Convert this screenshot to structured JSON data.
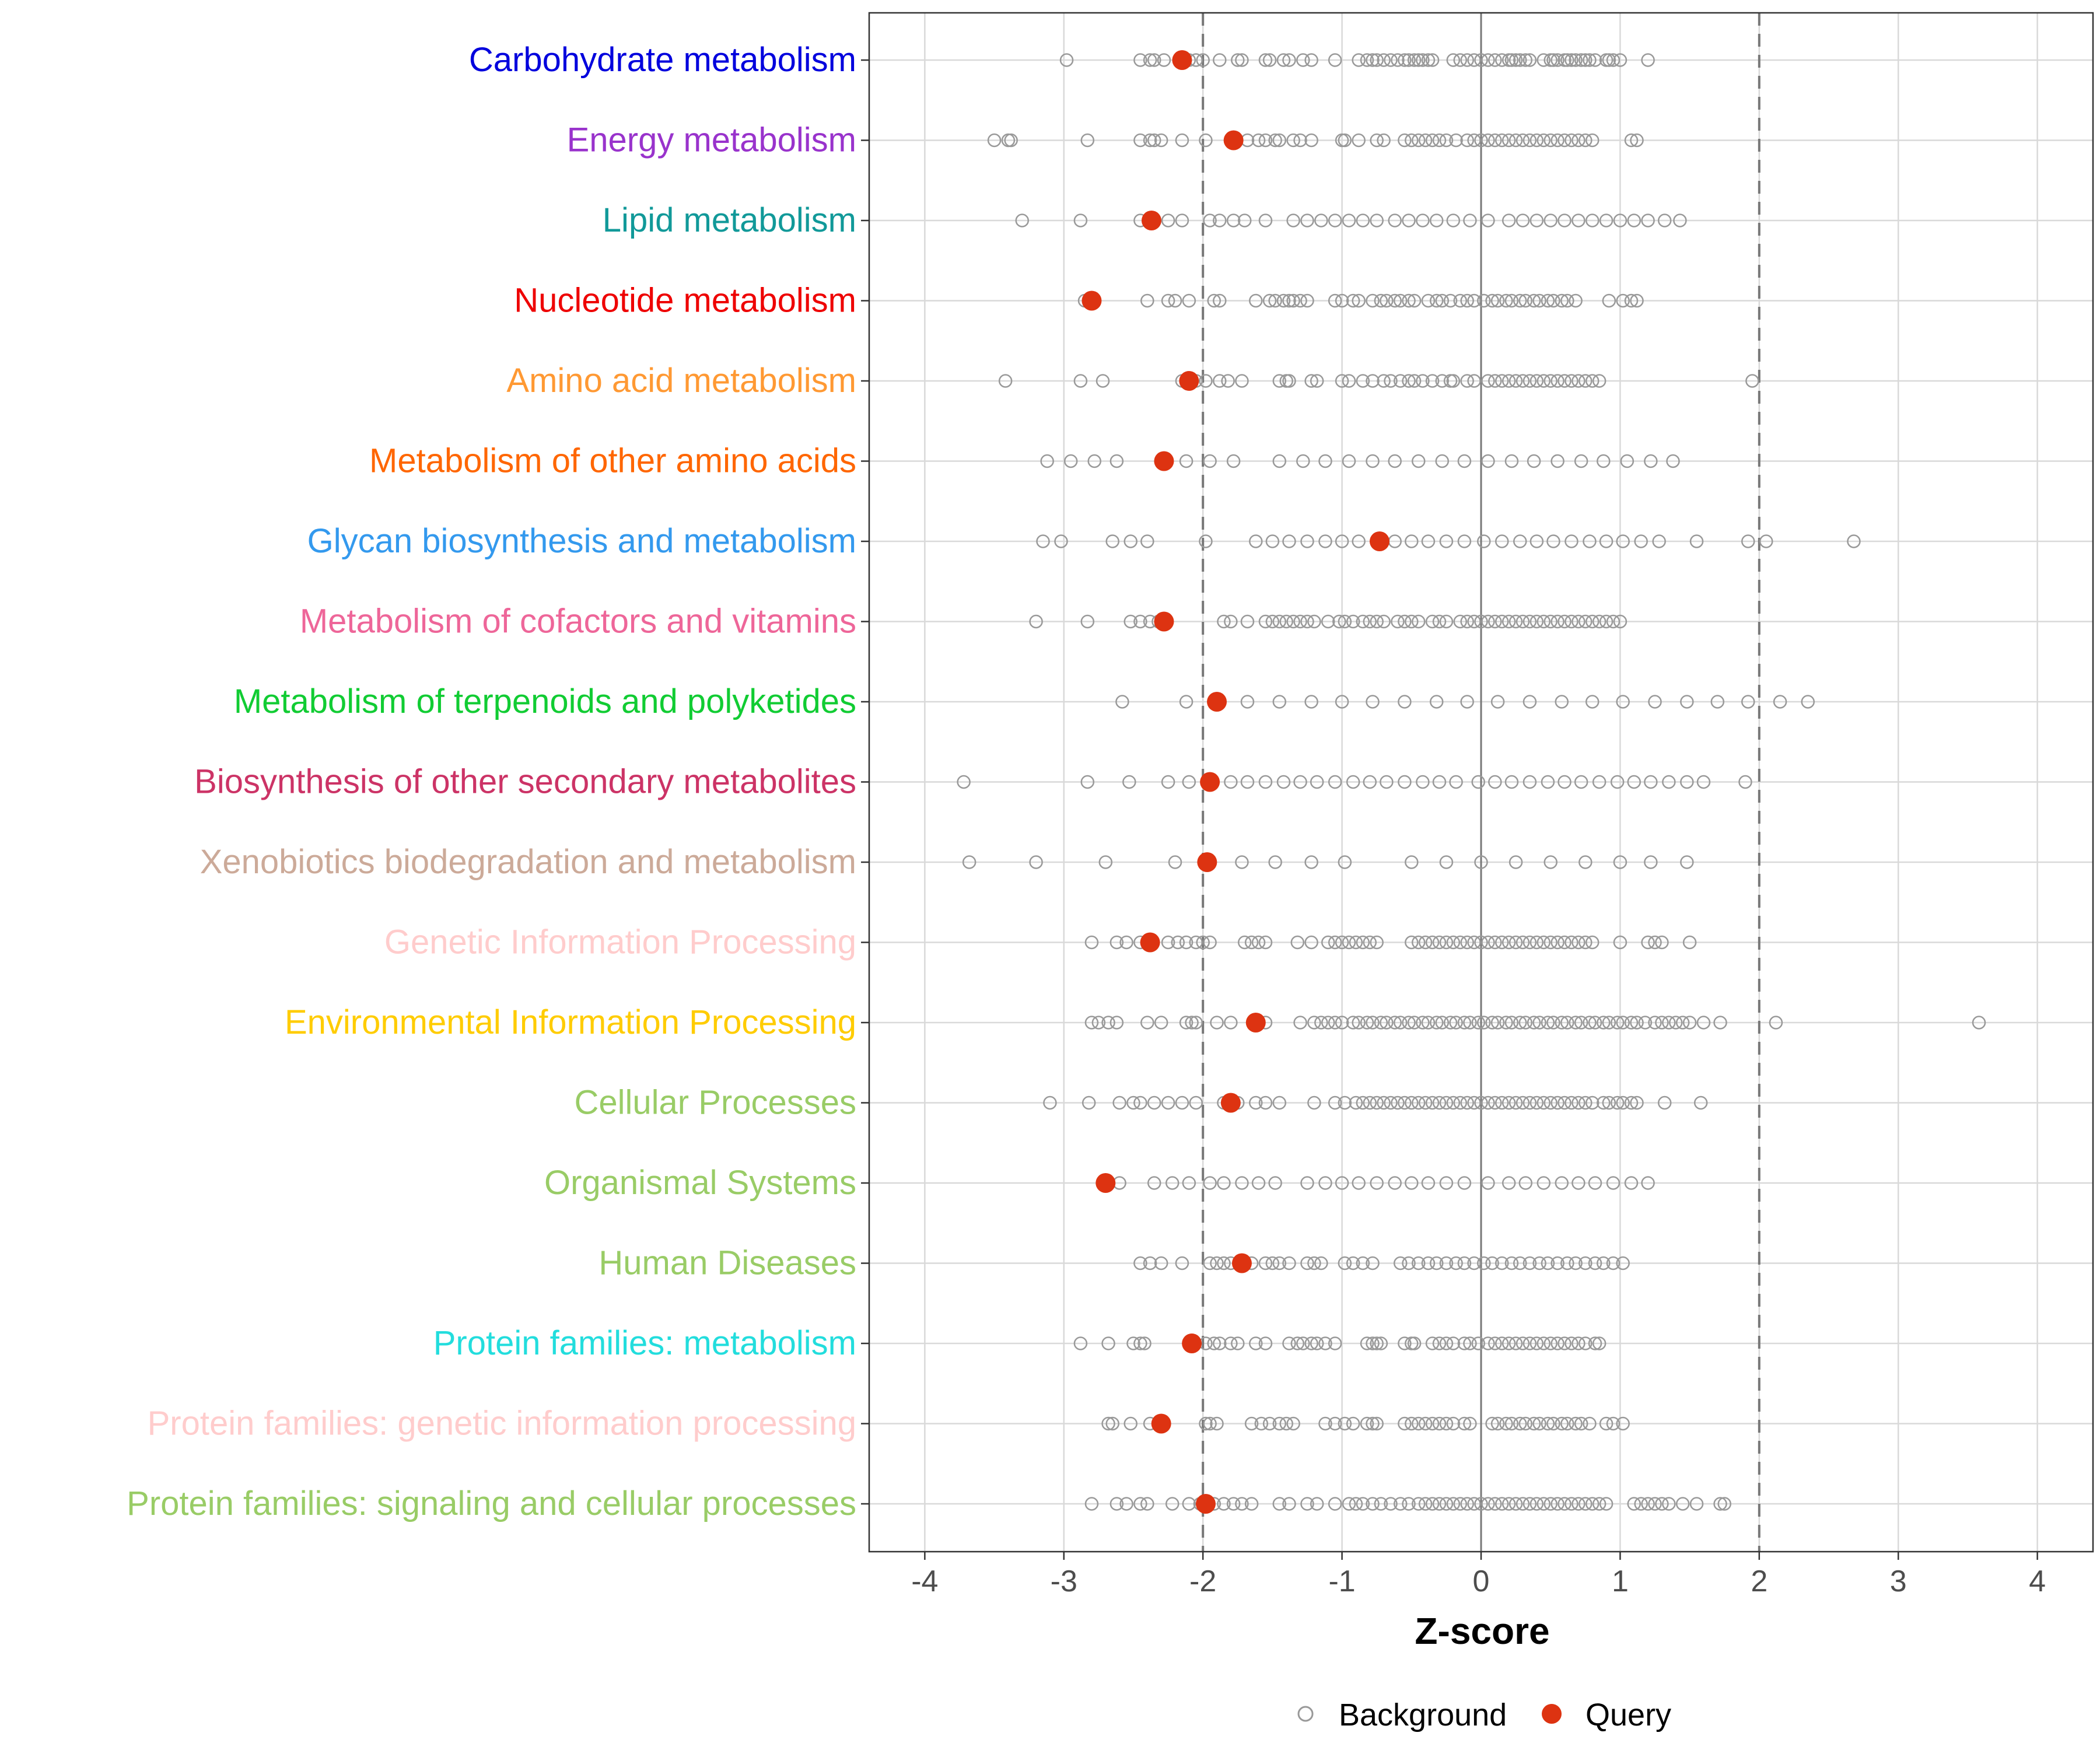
{
  "chart_data": {
    "type": "scatter",
    "title": "",
    "xlabel": "Z-score",
    "ylabel": "",
    "xlim": [
      -4.4,
      4.4
    ],
    "xticks": [
      "-4",
      "-3",
      "-2",
      "-1",
      "0",
      "1",
      "2",
      "3",
      "4"
    ],
    "xtick_values": [
      -4,
      -3,
      -2,
      -1,
      0,
      1,
      2,
      3,
      4
    ],
    "threshold_lines": [
      -2,
      2
    ],
    "zero_line": 0,
    "grid": true,
    "legend": {
      "position": "bottom",
      "entries": [
        {
          "name": "Background",
          "color": "#999999",
          "marker": "open-circle"
        },
        {
          "name": "Query",
          "color": "#dd3311",
          "marker": "filled-circle"
        }
      ]
    },
    "categories": [
      {
        "name": "Carbohydrate metabolism",
        "color": "#0000dd",
        "query": -2.15,
        "background": [
          -2.98,
          -2.45,
          -2.38,
          -2.35,
          -2.28,
          -2.1,
          -2.05,
          -2.0,
          -1.88,
          -1.75,
          -1.72,
          -1.55,
          -1.52,
          -1.42,
          -1.38,
          -1.28,
          -1.22,
          -1.05,
          -0.88,
          -0.82,
          -0.78,
          -0.75,
          -0.7,
          -0.65,
          -0.6,
          -0.55,
          -0.52,
          -0.48,
          -0.45,
          -0.42,
          -0.38,
          -0.35,
          -0.2,
          -0.15,
          -0.1,
          -0.05,
          0.0,
          0.05,
          0.1,
          0.15,
          0.2,
          0.22,
          0.25,
          0.28,
          0.32,
          0.35,
          0.45,
          0.5,
          0.52,
          0.55,
          0.6,
          0.62,
          0.65,
          0.68,
          0.72,
          0.75,
          0.78,
          0.82,
          0.9,
          0.92,
          0.95,
          1.0,
          1.2
        ]
      },
      {
        "name": "Energy metabolism",
        "color": "#9933cc",
        "query": -1.78,
        "background": [
          -3.5,
          -3.4,
          -3.38,
          -2.83,
          -2.45,
          -2.38,
          -2.35,
          -2.3,
          -2.15,
          -1.98,
          -1.68,
          -1.6,
          -1.55,
          -1.48,
          -1.45,
          -1.35,
          -1.3,
          -1.22,
          -1.0,
          -0.98,
          -0.88,
          -0.75,
          -0.7,
          -0.55,
          -0.5,
          -0.45,
          -0.4,
          -0.35,
          -0.3,
          -0.25,
          -0.18,
          -0.1,
          -0.05,
          0.0,
          0.05,
          0.1,
          0.15,
          0.2,
          0.25,
          0.3,
          0.35,
          0.4,
          0.45,
          0.5,
          0.55,
          0.6,
          0.65,
          0.7,
          0.75,
          0.8,
          1.08,
          1.12
        ]
      },
      {
        "name": "Lipid metabolism",
        "color": "#119999",
        "query": -2.37,
        "background": [
          -3.3,
          -2.88,
          -2.45,
          -2.25,
          -2.15,
          -1.95,
          -1.88,
          -1.78,
          -1.7,
          -1.55,
          -1.35,
          -1.25,
          -1.15,
          -1.05,
          -0.95,
          -0.85,
          -0.75,
          -0.62,
          -0.52,
          -0.42,
          -0.32,
          -0.2,
          -0.08,
          0.05,
          0.2,
          0.3,
          0.4,
          0.5,
          0.6,
          0.7,
          0.8,
          0.9,
          1.0,
          1.1,
          1.2,
          1.32,
          1.43
        ]
      },
      {
        "name": "Nucleotide metabolism",
        "color": "#ee0000",
        "query": -2.8,
        "background": [
          -2.85,
          -2.4,
          -2.25,
          -2.2,
          -2.1,
          -1.92,
          -1.88,
          -1.62,
          -1.52,
          -1.48,
          -1.42,
          -1.38,
          -1.35,
          -1.3,
          -1.25,
          -1.05,
          -1.0,
          -0.92,
          -0.88,
          -0.78,
          -0.72,
          -0.68,
          -0.62,
          -0.58,
          -0.52,
          -0.48,
          -0.38,
          -0.32,
          -0.28,
          -0.22,
          -0.15,
          -0.1,
          -0.05,
          0.02,
          0.08,
          0.12,
          0.18,
          0.22,
          0.28,
          0.32,
          0.38,
          0.42,
          0.48,
          0.52,
          0.58,
          0.62,
          0.68,
          0.92,
          1.02,
          1.08,
          1.12
        ]
      },
      {
        "name": "Amino acid metabolism",
        "color": "#ff9933",
        "query": -2.1,
        "background": [
          -3.42,
          -2.88,
          -2.72,
          -2.15,
          -2.05,
          -1.98,
          -1.88,
          -1.82,
          -1.72,
          -1.45,
          -1.4,
          -1.38,
          -1.22,
          -1.18,
          -1.0,
          -0.95,
          -0.85,
          -0.78,
          -0.7,
          -0.65,
          -0.58,
          -0.52,
          -0.48,
          -0.42,
          -0.35,
          -0.28,
          -0.22,
          -0.2,
          -0.1,
          -0.05,
          0.05,
          0.1,
          0.15,
          0.2,
          0.25,
          0.3,
          0.35,
          0.4,
          0.45,
          0.5,
          0.55,
          0.6,
          0.65,
          0.7,
          0.75,
          0.8,
          0.85,
          1.95
        ]
      },
      {
        "name": "Metabolism of other amino acids",
        "color": "#ff6600",
        "query": -2.28,
        "background": [
          -3.12,
          -2.95,
          -2.78,
          -2.62,
          -2.12,
          -1.95,
          -1.78,
          -1.45,
          -1.28,
          -1.12,
          -0.95,
          -0.78,
          -0.62,
          -0.45,
          -0.28,
          -0.12,
          0.05,
          0.22,
          0.38,
          0.55,
          0.72,
          0.88,
          1.05,
          1.22,
          1.38
        ]
      },
      {
        "name": "Glycan biosynthesis and metabolism",
        "color": "#3399ee",
        "query": -0.73,
        "background": [
          -3.15,
          -3.02,
          -2.65,
          -2.52,
          -2.4,
          -1.98,
          -1.62,
          -1.5,
          -1.38,
          -1.25,
          -1.12,
          -1.0,
          -0.88,
          -0.62,
          -0.5,
          -0.38,
          -0.25,
          -0.12,
          0.02,
          0.15,
          0.28,
          0.4,
          0.52,
          0.65,
          0.78,
          0.9,
          1.02,
          1.15,
          1.28,
          1.55,
          1.92,
          2.05,
          2.68
        ]
      },
      {
        "name": "Metabolism of cofactors and vitamins",
        "color": "#ee6699",
        "query": -2.28,
        "background": [
          -3.2,
          -2.83,
          -2.52,
          -2.45,
          -2.38,
          -2.32,
          -1.85,
          -1.8,
          -1.68,
          -1.55,
          -1.5,
          -1.45,
          -1.4,
          -1.35,
          -1.3,
          -1.25,
          -1.2,
          -1.1,
          -1.02,
          -0.98,
          -0.92,
          -0.85,
          -0.8,
          -0.75,
          -0.7,
          -0.6,
          -0.55,
          -0.5,
          -0.45,
          -0.35,
          -0.3,
          -0.25,
          -0.15,
          -0.1,
          -0.05,
          0.0,
          0.05,
          0.1,
          0.15,
          0.2,
          0.25,
          0.3,
          0.35,
          0.4,
          0.45,
          0.5,
          0.55,
          0.6,
          0.65,
          0.7,
          0.75,
          0.8,
          0.85,
          0.9,
          0.95,
          1.0
        ]
      },
      {
        "name": "Metabolism of terpenoids and polyketides",
        "color": "#11cc33",
        "query": -1.9,
        "background": [
          -2.58,
          -2.12,
          -1.68,
          -1.45,
          -1.22,
          -1.0,
          -0.78,
          -0.55,
          -0.32,
          -0.1,
          0.12,
          0.35,
          0.58,
          0.8,
          1.02,
          1.25,
          1.48,
          1.7,
          1.92,
          2.15,
          2.35
        ]
      },
      {
        "name": "Biosynthesis of other secondary metabolites",
        "color": "#cc3366",
        "query": -1.95,
        "background": [
          -3.72,
          -2.83,
          -2.53,
          -2.25,
          -2.1,
          -1.8,
          -1.68,
          -1.55,
          -1.42,
          -1.3,
          -1.18,
          -1.05,
          -0.92,
          -0.8,
          -0.68,
          -0.55,
          -0.42,
          -0.3,
          -0.18,
          -0.02,
          0.1,
          0.22,
          0.35,
          0.48,
          0.6,
          0.72,
          0.85,
          0.98,
          1.1,
          1.22,
          1.35,
          1.48,
          1.6,
          1.9
        ]
      },
      {
        "name": "Xenobiotics biodegradation and metabolism",
        "color": "#ccaa99",
        "query": -1.97,
        "background": [
          -3.68,
          -3.2,
          -2.7,
          -2.2,
          -1.72,
          -1.48,
          -1.22,
          -0.98,
          -0.5,
          -0.25,
          0.0,
          0.25,
          0.5,
          0.75,
          1.0,
          1.22,
          1.48
        ]
      },
      {
        "name": "Genetic Information Processing",
        "color": "#ffcccc",
        "query": -2.38,
        "background": [
          -2.8,
          -2.62,
          -2.55,
          -2.45,
          -2.25,
          -2.18,
          -2.12,
          -2.05,
          -2.0,
          -1.95,
          -1.7,
          -1.65,
          -1.6,
          -1.55,
          -1.32,
          -1.22,
          -1.1,
          -1.05,
          -1.0,
          -0.95,
          -0.9,
          -0.85,
          -0.8,
          -0.75,
          -0.5,
          -0.45,
          -0.4,
          -0.35,
          -0.3,
          -0.25,
          -0.2,
          -0.15,
          -0.1,
          -0.05,
          0.0,
          0.05,
          0.1,
          0.15,
          0.2,
          0.25,
          0.3,
          0.35,
          0.4,
          0.45,
          0.5,
          0.55,
          0.6,
          0.65,
          0.7,
          0.75,
          0.8,
          1.0,
          1.2,
          1.25,
          1.3,
          1.5
        ]
      },
      {
        "name": "Environmental Information Processing",
        "color": "#ffcc00",
        "query": -1.62,
        "background": [
          -2.8,
          -2.75,
          -2.68,
          -2.62,
          -2.4,
          -2.3,
          -2.12,
          -2.08,
          -2.05,
          -1.9,
          -1.8,
          -1.55,
          -1.3,
          -1.2,
          -1.15,
          -1.1,
          -1.05,
          -1.0,
          -0.92,
          -0.88,
          -0.82,
          -0.78,
          -0.72,
          -0.68,
          -0.62,
          -0.58,
          -0.52,
          -0.48,
          -0.42,
          -0.38,
          -0.32,
          -0.28,
          -0.22,
          -0.18,
          -0.12,
          -0.08,
          -0.02,
          0.02,
          0.08,
          0.12,
          0.18,
          0.22,
          0.28,
          0.32,
          0.38,
          0.42,
          0.48,
          0.52,
          0.58,
          0.62,
          0.68,
          0.72,
          0.78,
          0.82,
          0.88,
          0.92,
          0.98,
          1.02,
          1.08,
          1.12,
          1.18,
          1.25,
          1.3,
          1.35,
          1.4,
          1.45,
          1.5,
          1.6,
          1.72,
          2.12,
          3.58
        ]
      },
      {
        "name": "Cellular Processes",
        "color": "#99cc66",
        "query": -1.8,
        "background": [
          -3.1,
          -2.82,
          -2.6,
          -2.5,
          -2.45,
          -2.35,
          -2.25,
          -2.15,
          -2.05,
          -1.85,
          -1.75,
          -1.62,
          -1.55,
          -1.45,
          -1.2,
          -1.05,
          -0.98,
          -0.9,
          -0.85,
          -0.8,
          -0.75,
          -0.7,
          -0.65,
          -0.6,
          -0.55,
          -0.5,
          -0.45,
          -0.4,
          -0.35,
          -0.3,
          -0.25,
          -0.2,
          -0.15,
          -0.1,
          -0.05,
          0.0,
          0.05,
          0.1,
          0.15,
          0.2,
          0.25,
          0.3,
          0.35,
          0.4,
          0.45,
          0.5,
          0.55,
          0.6,
          0.65,
          0.7,
          0.75,
          0.8,
          0.88,
          0.92,
          0.98,
          1.02,
          1.08,
          1.12,
          1.32,
          1.58
        ]
      },
      {
        "name": "Organismal Systems",
        "color": "#99cc66",
        "query": -2.7,
        "background": [
          -2.6,
          -2.35,
          -2.22,
          -2.1,
          -1.95,
          -1.85,
          -1.72,
          -1.6,
          -1.48,
          -1.25,
          -1.12,
          -1.0,
          -0.88,
          -0.75,
          -0.62,
          -0.5,
          -0.38,
          -0.25,
          -0.12,
          0.05,
          0.2,
          0.32,
          0.45,
          0.58,
          0.7,
          0.82,
          0.95,
          1.08,
          1.2
        ]
      },
      {
        "name": "Human Diseases",
        "color": "#99cc66",
        "query": -1.72,
        "background": [
          -2.45,
          -2.38,
          -2.3,
          -2.15,
          -1.95,
          -1.9,
          -1.85,
          -1.8,
          -1.65,
          -1.55,
          -1.5,
          -1.45,
          -1.38,
          -1.25,
          -1.2,
          -1.15,
          -0.98,
          -0.92,
          -0.85,
          -0.78,
          -0.58,
          -0.52,
          -0.45,
          -0.38,
          -0.32,
          -0.25,
          -0.18,
          -0.12,
          -0.05,
          0.02,
          0.08,
          0.15,
          0.22,
          0.28,
          0.35,
          0.42,
          0.48,
          0.55,
          0.62,
          0.68,
          0.75,
          0.82,
          0.88,
          0.95,
          1.02
        ]
      },
      {
        "name": "Protein families: metabolism",
        "color": "#22dddd",
        "query": -2.08,
        "background": [
          -2.88,
          -2.68,
          -2.5,
          -2.45,
          -2.42,
          -1.98,
          -1.92,
          -1.88,
          -1.8,
          -1.75,
          -1.62,
          -1.55,
          -1.38,
          -1.32,
          -1.28,
          -1.22,
          -1.18,
          -1.12,
          -1.05,
          -0.82,
          -0.78,
          -0.75,
          -0.72,
          -0.55,
          -0.5,
          -0.48,
          -0.35,
          -0.3,
          -0.25,
          -0.2,
          -0.12,
          -0.08,
          -0.02,
          0.05,
          0.1,
          0.15,
          0.2,
          0.25,
          0.3,
          0.35,
          0.4,
          0.45,
          0.5,
          0.55,
          0.6,
          0.65,
          0.7,
          0.75,
          0.82,
          0.85
        ]
      },
      {
        "name": "Protein families: genetic information processing",
        "color": "#ffcccc",
        "query": -2.3,
        "background": [
          -2.68,
          -2.65,
          -2.52,
          -2.38,
          -2.32,
          -1.98,
          -1.95,
          -1.9,
          -1.65,
          -1.58,
          -1.52,
          -1.45,
          -1.4,
          -1.35,
          -1.12,
          -1.05,
          -0.98,
          -0.92,
          -0.82,
          -0.78,
          -0.75,
          -0.55,
          -0.5,
          -0.45,
          -0.4,
          -0.35,
          -0.3,
          -0.25,
          -0.2,
          -0.12,
          -0.08,
          0.08,
          0.12,
          0.18,
          0.22,
          0.28,
          0.32,
          0.38,
          0.42,
          0.48,
          0.52,
          0.58,
          0.62,
          0.68,
          0.72,
          0.78,
          0.9,
          0.95,
          1.02
        ]
      },
      {
        "name": "Protein families: signaling and cellular processes",
        "color": "#99cc66",
        "query": -1.98,
        "background": [
          -2.8,
          -2.62,
          -2.55,
          -2.45,
          -2.4,
          -2.22,
          -2.1,
          -2.02,
          -1.92,
          -1.85,
          -1.78,
          -1.72,
          -1.65,
          -1.45,
          -1.38,
          -1.25,
          -1.18,
          -1.05,
          -0.95,
          -0.9,
          -0.85,
          -0.78,
          -0.72,
          -0.65,
          -0.58,
          -0.52,
          -0.45,
          -0.4,
          -0.35,
          -0.3,
          -0.25,
          -0.2,
          -0.15,
          -0.1,
          -0.05,
          0.0,
          0.05,
          0.1,
          0.15,
          0.2,
          0.25,
          0.3,
          0.35,
          0.4,
          0.45,
          0.5,
          0.55,
          0.6,
          0.65,
          0.7,
          0.75,
          0.8,
          0.85,
          0.9,
          1.1,
          1.15,
          1.2,
          1.25,
          1.3,
          1.35,
          1.45,
          1.55,
          1.72,
          1.75
        ]
      }
    ]
  }
}
